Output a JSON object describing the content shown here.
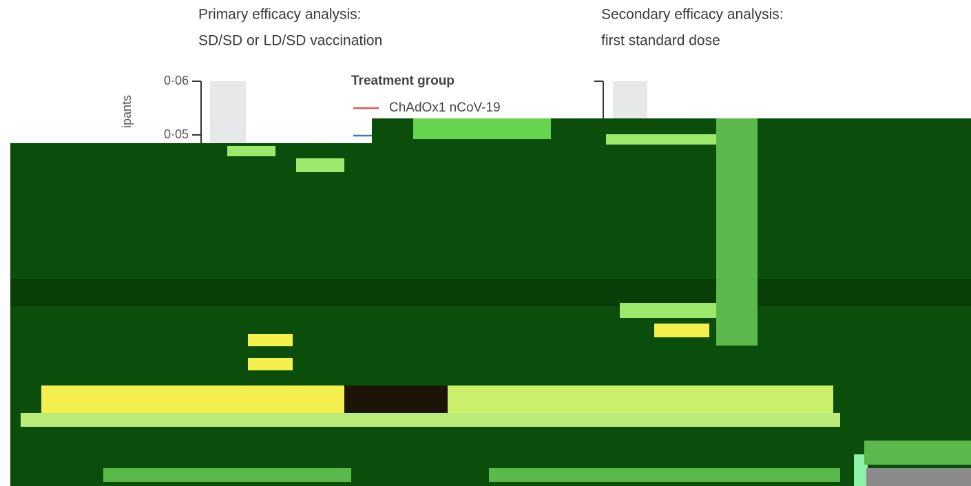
{
  "chart_data": [
    {
      "type": "line",
      "title": [
        "Primary efficacy analysis:",
        "SD/SD or LD/SD vaccination"
      ],
      "y_label": "ipants",
      "ylim": [
        0,
        0.06
      ],
      "yticks": [
        {
          "value": 0.05,
          "label": "0·05"
        },
        {
          "value": 0.06,
          "label": "0·06"
        }
      ],
      "legend_title": "Treatment group",
      "series": [
        {
          "name": "ChAdOx1 nCoV-19",
          "color": "#e0584f"
        }
      ]
    },
    {
      "type": "line",
      "title": [
        "Secondary efficacy analysis:",
        "first standard dose"
      ],
      "ylim": [
        0,
        0.06
      ]
    }
  ]
}
